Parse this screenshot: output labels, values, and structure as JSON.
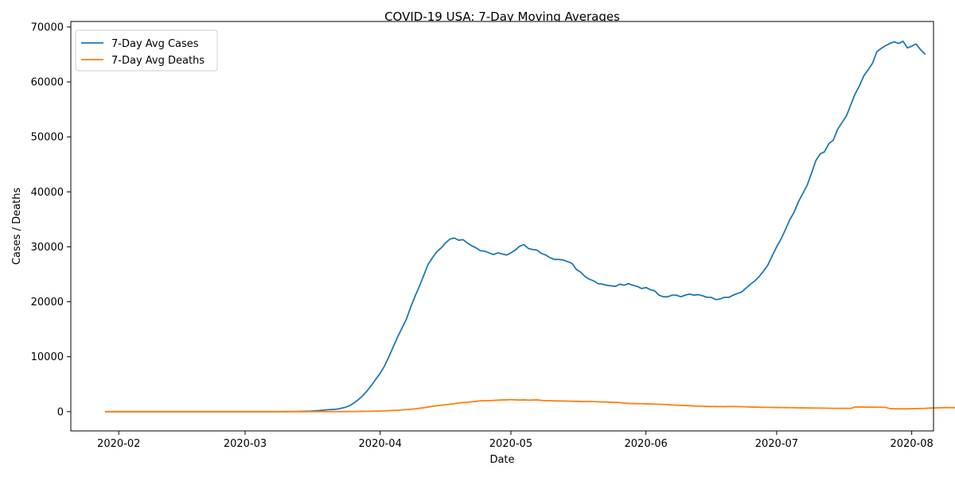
{
  "chart_data": {
    "type": "line",
    "title": "COVID-19 USA: 7-Day Moving Averages",
    "xlabel": "Date",
    "ylabel": "Cases / Deaths",
    "x_start": "2020-01-29",
    "xlim": [
      "2020-01-21",
      "2020-08-06"
    ],
    "ylim": [
      -3500,
      71000
    ],
    "x_ticks": [
      "2020-02-01",
      "2020-03-01",
      "2020-04-01",
      "2020-05-01",
      "2020-06-01",
      "2020-07-01",
      "2020-08-01"
    ],
    "x_tick_labels": [
      "2020-02",
      "2020-03",
      "2020-04",
      "2020-05",
      "2020-06",
      "2020-07",
      "2020-08"
    ],
    "y_ticks": [
      0,
      10000,
      20000,
      30000,
      40000,
      50000,
      60000,
      70000
    ],
    "y_tick_labels": [
      "0",
      "10000",
      "20000",
      "30000",
      "40000",
      "50000",
      "60000",
      "70000"
    ],
    "grid": false,
    "legend": {
      "position": "top-left"
    },
    "series": [
      {
        "name": "7-Day Avg Cases",
        "color": "#1f77b4",
        "values": [
          0,
          0,
          0,
          0,
          0,
          0,
          0,
          0,
          0,
          0,
          0,
          0,
          0,
          0,
          0,
          0,
          0,
          0,
          0,
          0,
          0,
          0,
          0,
          0,
          0,
          0,
          0,
          0,
          0,
          0,
          0,
          0,
          0,
          0,
          0,
          0,
          0,
          0,
          0,
          0,
          10,
          15,
          20,
          30,
          40,
          55,
          75,
          100,
          150,
          200,
          280,
          350,
          400,
          450,
          600,
          800,
          1100,
          1600,
          2200,
          2900,
          3800,
          4800,
          5900,
          7000,
          8300,
          10000,
          11800,
          13600,
          15200,
          16800,
          19000,
          21000,
          22800,
          24800,
          26800,
          28000,
          29100,
          29800,
          30700,
          31400,
          31600,
          31200,
          31300,
          30700,
          30200,
          29800,
          29300,
          29200,
          28900,
          28600,
          28900,
          28700,
          28500,
          28900,
          29400,
          30100,
          30400,
          29700,
          29500,
          29400,
          28800,
          28500,
          28000,
          27700,
          27700,
          27600,
          27300,
          27000,
          25900,
          25400,
          24600,
          24100,
          23800,
          23300,
          23200,
          23000,
          22900,
          22800,
          23200,
          23000,
          23300,
          23000,
          22800,
          22400,
          22600,
          22200,
          22000,
          21200,
          20900,
          20900,
          21200,
          21200,
          20900,
          21200,
          21400,
          21200,
          21300,
          21100,
          20800,
          20800,
          20400,
          20500,
          20800,
          20800,
          21200,
          21500,
          21800,
          22500,
          23200,
          23800,
          24600,
          25600,
          26700,
          28400,
          30000,
          31400,
          33100,
          34900,
          36300,
          38200,
          39700,
          41200,
          43400,
          45700,
          46900,
          47300,
          48800,
          49400,
          51400,
          52600,
          53800,
          55800,
          57800,
          59300,
          61100,
          62200,
          63400,
          65500,
          66100,
          66600,
          67000,
          67300,
          67000,
          67400,
          66200,
          66500,
          66900,
          65900,
          65100
        ]
      },
      {
        "name": "7-Day Avg Deaths",
        "color": "#ff7f0e",
        "values": [
          0,
          0,
          0,
          0,
          0,
          0,
          0,
          0,
          0,
          0,
          0,
          0,
          0,
          0,
          0,
          0,
          0,
          0,
          0,
          0,
          0,
          0,
          0,
          0,
          0,
          0,
          0,
          0,
          0,
          0,
          0,
          0,
          0,
          0,
          0,
          0,
          0,
          0,
          0,
          0,
          0,
          0,
          0,
          0,
          1,
          1,
          2,
          3,
          4,
          5,
          6,
          8,
          10,
          12,
          15,
          20,
          25,
          30,
          40,
          50,
          65,
          80,
          100,
          120,
          150,
          180,
          220,
          260,
          310,
          370,
          430,
          520,
          620,
          720,
          850,
          980,
          1080,
          1170,
          1260,
          1350,
          1450,
          1580,
          1660,
          1700,
          1800,
          1880,
          1980,
          2000,
          2020,
          2050,
          2100,
          2130,
          2150,
          2200,
          2150,
          2120,
          2150,
          2100,
          2120,
          2150,
          2050,
          2000,
          2020,
          1950,
          1950,
          1940,
          1920,
          1900,
          1880,
          1860,
          1850,
          1850,
          1830,
          1800,
          1780,
          1750,
          1720,
          1690,
          1650,
          1550,
          1500,
          1480,
          1460,
          1450,
          1430,
          1400,
          1380,
          1350,
          1330,
          1280,
          1220,
          1180,
          1150,
          1120,
          1100,
          1050,
          1000,
          980,
          960,
          950,
          940,
          930,
          920,
          950,
          950,
          920,
          900,
          880,
          850,
          830,
          810,
          790,
          780,
          770,
          760,
          750,
          740,
          730,
          720,
          700,
          690,
          680,
          670,
          660,
          650,
          640,
          620,
          610,
          600,
          600,
          610,
          600,
          850,
          840,
          830,
          820,
          810,
          800,
          790,
          780,
          560,
          530,
          520,
          510,
          520,
          540,
          560,
          580,
          600,
          650,
          680,
          700,
          720,
          740,
          730,
          720,
          730,
          740,
          750,
          760,
          780,
          800,
          820,
          840,
          860,
          880,
          900,
          920,
          950
        ]
      }
    ]
  }
}
